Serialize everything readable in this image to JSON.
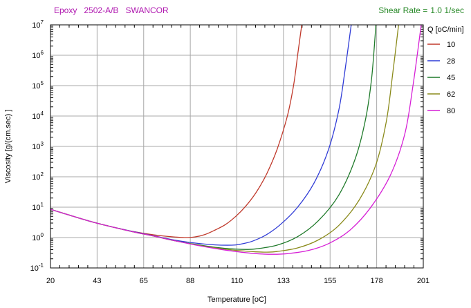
{
  "header": {
    "material": "Epoxy",
    "grade": "2502-A/B",
    "supplier": "SWANCOR",
    "shear_label": "Shear Rate =",
    "shear_value": "1.0 1/sec"
  },
  "colors": {
    "title": "#b019b0",
    "shear": "#2a8a2a",
    "grid": "#a8a8a8",
    "frame": "#000000"
  },
  "chart_data": {
    "type": "line",
    "xlabel": "Temperature [oC]",
    "ylabel": "Viscosity [g/(cm.sec) ]",
    "xlim": [
      20,
      201
    ],
    "ylim_log10": [
      -1,
      7
    ],
    "y_scale": "log",
    "grid": true,
    "legend_placement": "right",
    "x_ticks": [
      "20",
      "43",
      "65",
      "88",
      "110",
      "133",
      "155",
      "178",
      "201"
    ],
    "y_tick_exponents": [
      "7",
      "6",
      "5",
      "4",
      "3",
      "2",
      "1",
      "0",
      "-1"
    ],
    "legend_title": "Q [oC/min]",
    "series": [
      {
        "name": "10",
        "color": "#c0392b",
        "x": [
          20,
          30,
          40,
          50,
          60,
          70,
          80,
          85,
          90,
          95,
          100,
          105,
          110,
          115,
          120,
          125,
          130,
          135,
          138,
          140,
          142
        ],
        "log10_y": [
          0.93,
          0.72,
          0.52,
          0.35,
          0.2,
          0.09,
          0.02,
          0.0,
          0.02,
          0.1,
          0.25,
          0.43,
          0.7,
          1.05,
          1.5,
          2.1,
          2.9,
          4.0,
          5.0,
          6.0,
          7.0
        ]
      },
      {
        "name": "28",
        "color": "#2f3bd6",
        "x": [
          20,
          30,
          40,
          50,
          60,
          70,
          80,
          90,
          100,
          108,
          112,
          118,
          125,
          132,
          140,
          148,
          155,
          160,
          163,
          166
        ],
        "log10_y": [
          0.93,
          0.72,
          0.52,
          0.35,
          0.2,
          0.06,
          -0.08,
          -0.18,
          -0.24,
          -0.25,
          -0.22,
          -0.12,
          0.1,
          0.45,
          1.0,
          1.8,
          2.9,
          4.2,
          5.5,
          7.0
        ]
      },
      {
        "name": "45",
        "color": "#1f7a2a",
        "x": [
          20,
          30,
          40,
          50,
          60,
          70,
          80,
          90,
          100,
          110,
          115,
          120,
          130,
          140,
          150,
          160,
          168,
          173,
          176,
          178
        ],
        "log10_y": [
          0.93,
          0.72,
          0.52,
          0.35,
          0.19,
          0.05,
          -0.1,
          -0.22,
          -0.32,
          -0.38,
          -0.39,
          -0.37,
          -0.25,
          0.03,
          0.55,
          1.4,
          2.6,
          3.9,
          5.3,
          7.0
        ]
      },
      {
        "name": "62",
        "color": "#8a8a1a",
        "x": [
          20,
          30,
          40,
          50,
          60,
          70,
          80,
          90,
          100,
          110,
          120,
          125,
          130,
          140,
          150,
          160,
          170,
          178,
          183,
          186,
          189
        ],
        "log10_y": [
          0.93,
          0.72,
          0.52,
          0.35,
          0.19,
          0.05,
          -0.1,
          -0.23,
          -0.34,
          -0.42,
          -0.47,
          -0.48,
          -0.46,
          -0.34,
          -0.08,
          0.4,
          1.25,
          2.4,
          3.8,
          5.3,
          7.0
        ]
      },
      {
        "name": "80",
        "color": "#d61fd6",
        "x": [
          20,
          30,
          40,
          50,
          60,
          70,
          80,
          90,
          100,
          110,
          120,
          128,
          135,
          145,
          155,
          165,
          175,
          185,
          192,
          196,
          200
        ],
        "log10_y": [
          0.93,
          0.72,
          0.52,
          0.35,
          0.19,
          0.05,
          -0.1,
          -0.24,
          -0.36,
          -0.46,
          -0.53,
          -0.55,
          -0.53,
          -0.43,
          -0.2,
          0.22,
          0.95,
          2.05,
          3.4,
          5.0,
          7.0
        ]
      }
    ]
  }
}
